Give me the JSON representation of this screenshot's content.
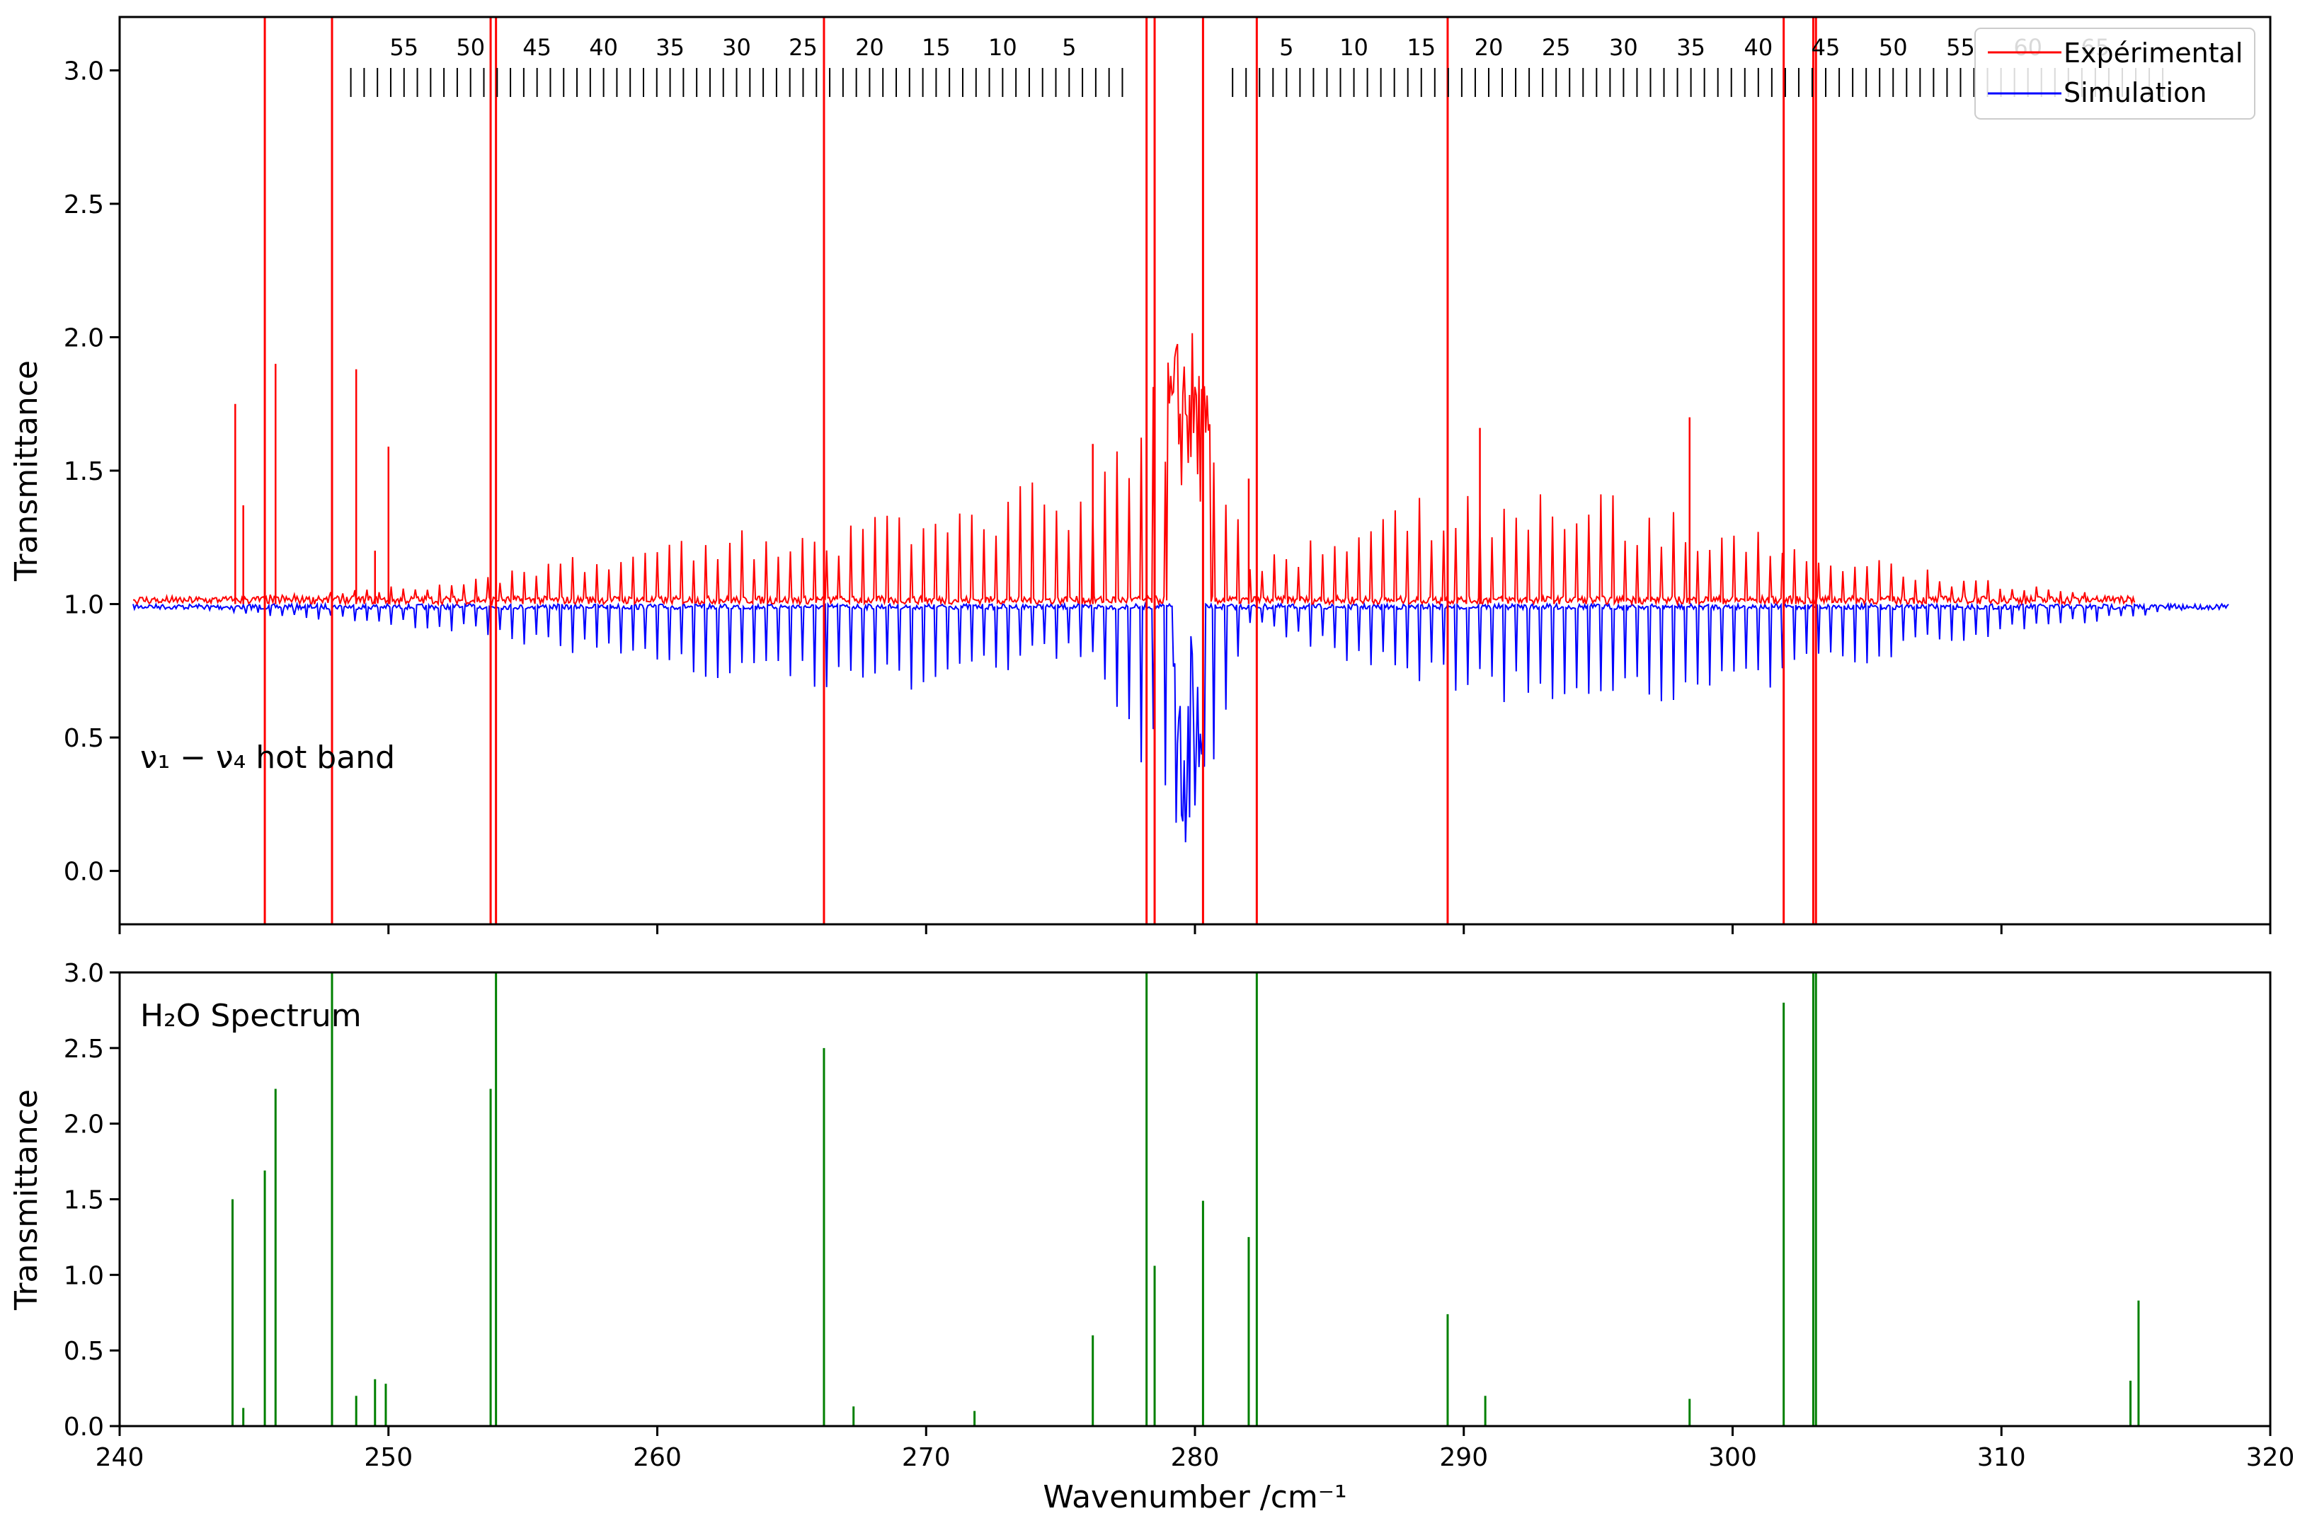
{
  "chart_data": [
    {
      "type": "line",
      "panel": "top",
      "title": "",
      "xlabel": "",
      "ylabel": "Transmittance",
      "xlim": [
        240,
        320
      ],
      "ylim": [
        -0.2,
        3.2
      ],
      "x_ticks": [
        240,
        250,
        260,
        270,
        280,
        290,
        300,
        310,
        320
      ],
      "y_ticks": [
        "0.0",
        "0.5",
        "1.0",
        "1.5",
        "2.0",
        "2.5",
        "3.0"
      ],
      "annotation": "ν₁ − ν₄ hot band",
      "legend": {
        "placement": "top-right",
        "entries": [
          {
            "label": "Expérimental",
            "color": "#ff0000"
          },
          {
            "label": "Simulation",
            "color": "#0000ff"
          }
        ]
      },
      "band_center": 279.8,
      "series": [
        {
          "name": "Expérimental",
          "color": "#ff0000",
          "baseline": 1.0,
          "envelope": [
            {
              "x": 240.5,
              "y": 1.0
            },
            {
              "x": 252,
              "y": 1.08
            },
            {
              "x": 260,
              "y": 1.25
            },
            {
              "x": 268,
              "y": 1.33
            },
            {
              "x": 276,
              "y": 1.5
            },
            {
              "x": 279.8,
              "y": 2.08
            },
            {
              "x": 282,
              "y": 1.15
            },
            {
              "x": 288,
              "y": 1.4
            },
            {
              "x": 294,
              "y": 1.45
            },
            {
              "x": 300,
              "y": 1.3
            },
            {
              "x": 308,
              "y": 1.12
            },
            {
              "x": 315,
              "y": 1.03
            }
          ],
          "off_scale_lines": [
            245.4,
            247.9,
            253.8,
            254.0,
            266.2,
            278.2,
            278.5,
            280.3,
            282.3,
            289.4,
            301.9,
            303.0,
            303.1
          ],
          "spikes": [
            {
              "x": 244.3,
              "y": 1.75
            },
            {
              "x": 244.6,
              "y": 1.37
            },
            {
              "x": 245.8,
              "y": 1.9
            },
            {
              "x": 248.8,
              "y": 1.88
            },
            {
              "x": 249.5,
              "y": 1.2
            },
            {
              "x": 250.0,
              "y": 1.59
            },
            {
              "x": 276.2,
              "y": 1.6
            },
            {
              "x": 282.0,
              "y": 1.47
            },
            {
              "x": 290.6,
              "y": 1.66
            },
            {
              "x": 298.4,
              "y": 1.7
            }
          ]
        },
        {
          "name": "Simulation",
          "color": "#0000ff",
          "baseline": 1.0,
          "envelope": [
            {
              "x": 240.5,
              "y": 1.0
            },
            {
              "x": 252,
              "y": 0.9
            },
            {
              "x": 260,
              "y": 0.75
            },
            {
              "x": 268,
              "y": 0.65
            },
            {
              "x": 276,
              "y": 0.8
            },
            {
              "x": 279.8,
              "y": 0.04
            },
            {
              "x": 282,
              "y": 0.92
            },
            {
              "x": 288,
              "y": 0.7
            },
            {
              "x": 294,
              "y": 0.58
            },
            {
              "x": 300,
              "y": 0.65
            },
            {
              "x": 308,
              "y": 0.85
            },
            {
              "x": 318.5,
              "y": 1.0
            }
          ]
        }
      ],
      "assignment_ticks": {
        "p_branch": {
          "x_start": 248.6,
          "x_end": 277.3,
          "count": 59,
          "labels": [
            "55",
            "50",
            "45",
            "40",
            "35",
            "30",
            "25",
            "20",
            "15",
            "10",
            "5"
          ]
        },
        "r_branch": {
          "x_start": 281.4,
          "x_end": 316.0,
          "count": 70,
          "labels": [
            "5",
            "10",
            "15",
            "20",
            "25",
            "30",
            "35",
            "40",
            "45",
            "50",
            "55",
            "60",
            "65"
          ]
        }
      }
    },
    {
      "type": "line",
      "panel": "bottom",
      "title": "",
      "xlabel": "Wavenumber /cm⁻¹",
      "ylabel": "Transmittance",
      "xlim": [
        240,
        320
      ],
      "ylim": [
        0,
        3.0
      ],
      "x_ticks": [
        "240",
        "250",
        "260",
        "270",
        "280",
        "290",
        "300",
        "310",
        "320"
      ],
      "y_ticks": [
        "0.0",
        "0.5",
        "1.0",
        "1.5",
        "2.0",
        "2.5",
        "3.0"
      ],
      "annotation": "H₂O Spectrum",
      "series": [
        {
          "name": "H₂O Spectrum",
          "color": "#008000",
          "lines": [
            {
              "x": 244.2,
              "y": 1.5
            },
            {
              "x": 244.6,
              "y": 0.12
            },
            {
              "x": 245.4,
              "y": 1.69
            },
            {
              "x": 245.8,
              "y": 2.23
            },
            {
              "x": 247.9,
              "y": 3.0
            },
            {
              "x": 248.8,
              "y": 0.2
            },
            {
              "x": 249.5,
              "y": 0.31
            },
            {
              "x": 249.9,
              "y": 0.28
            },
            {
              "x": 253.8,
              "y": 2.23
            },
            {
              "x": 254.0,
              "y": 3.0
            },
            {
              "x": 266.2,
              "y": 2.5
            },
            {
              "x": 267.3,
              "y": 0.13
            },
            {
              "x": 271.8,
              "y": 0.1
            },
            {
              "x": 276.2,
              "y": 0.6
            },
            {
              "x": 278.2,
              "y": 3.0
            },
            {
              "x": 278.5,
              "y": 1.06
            },
            {
              "x": 280.3,
              "y": 1.49
            },
            {
              "x": 282.0,
              "y": 1.25
            },
            {
              "x": 282.3,
              "y": 3.0
            },
            {
              "x": 289.4,
              "y": 0.74
            },
            {
              "x": 290.8,
              "y": 0.2
            },
            {
              "x": 298.4,
              "y": 0.18
            },
            {
              "x": 301.9,
              "y": 2.8
            },
            {
              "x": 303.0,
              "y": 3.0
            },
            {
              "x": 303.1,
              "y": 3.0
            },
            {
              "x": 314.8,
              "y": 0.3
            },
            {
              "x": 315.1,
              "y": 0.83
            }
          ]
        }
      ]
    }
  ]
}
